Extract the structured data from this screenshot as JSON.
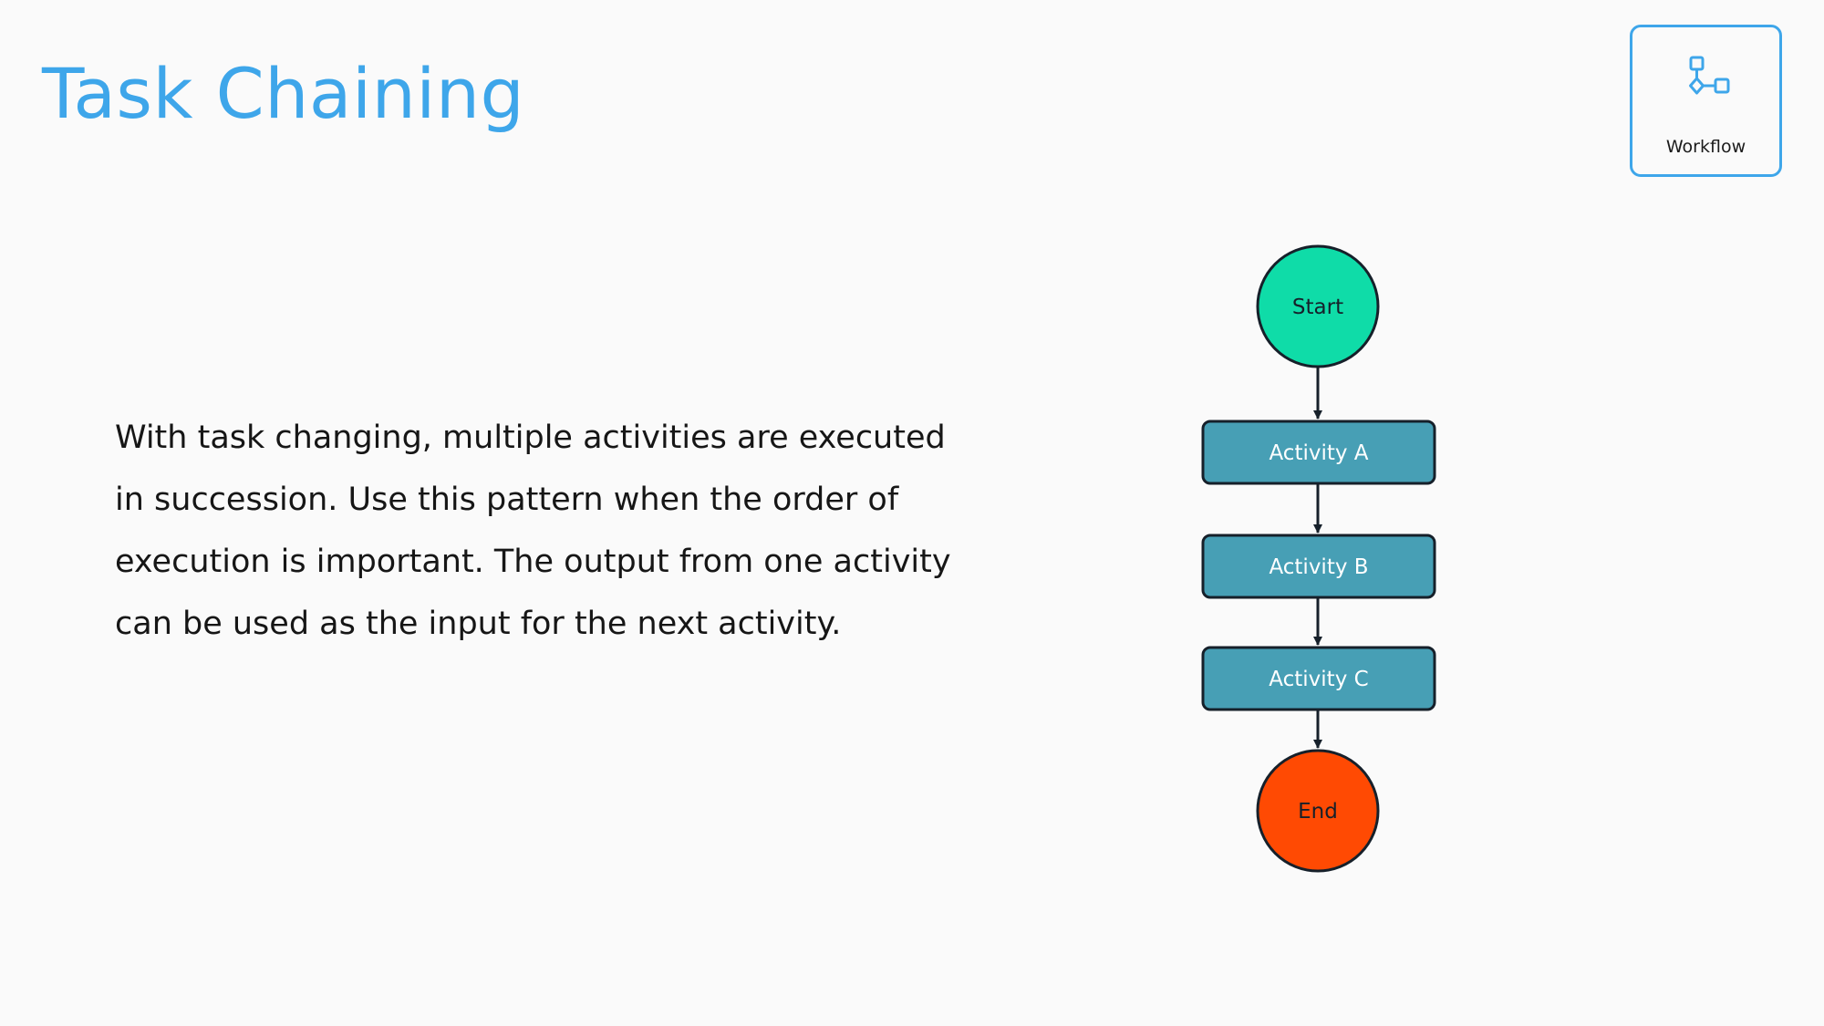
{
  "header": {
    "title": "Task Chaining"
  },
  "badge": {
    "icon": "workflow-icon",
    "label": "Workflow"
  },
  "description": "With task changing, multiple activities are executed\nin succession. Use this pattern when the order of\nexecution is important. The output from one activity\ncan be used as the input for the next activity.",
  "flowchart": {
    "start": "Start",
    "activities": [
      "Activity A",
      "Activity B",
      "Activity C"
    ],
    "end": "End"
  },
  "colors": {
    "accent": "#3ea6ea",
    "start_node": "#0fdca8",
    "activity_node": "#479fb5",
    "end_node": "#ff4a03",
    "stroke": "#16202a"
  }
}
